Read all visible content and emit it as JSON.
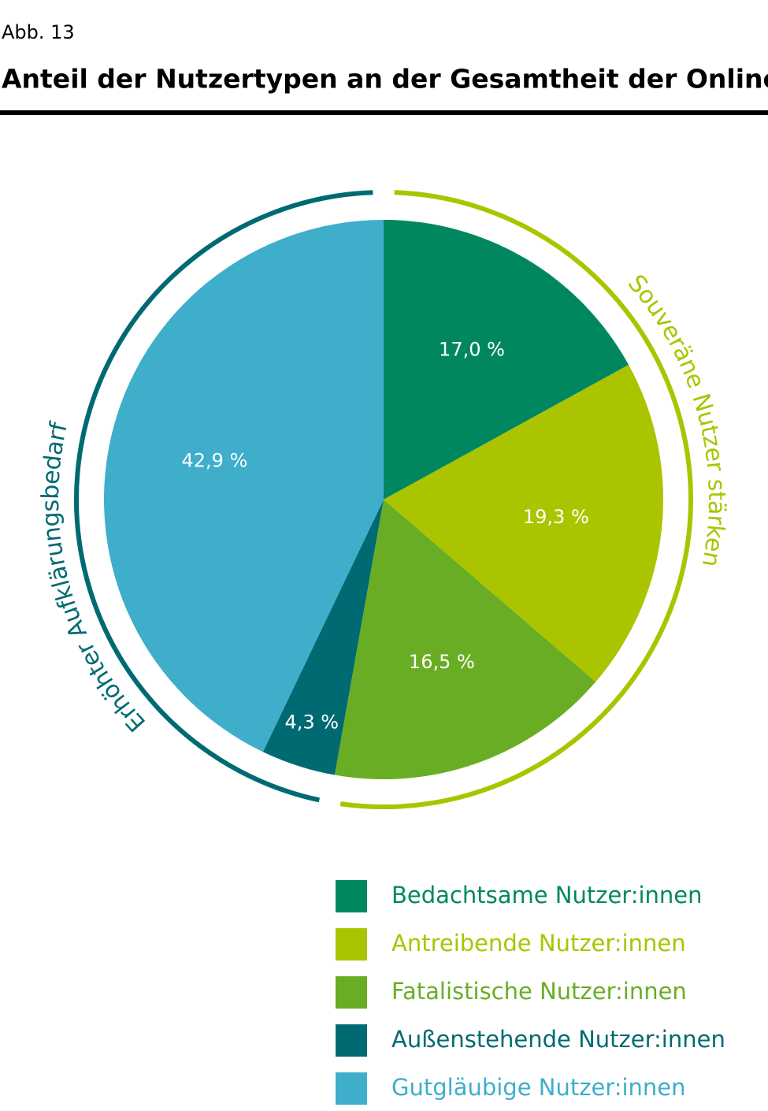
{
  "chart_data": {
    "type": "pie",
    "figure_label": "Abb. 13",
    "title": "Anteil der Nutzertypen an der Gesamtheit der Onliner",
    "categories": [
      "Bedachtsame Nutzer:innen",
      "Antreibende Nutzer:innen",
      "Fatalistische Nutzer:innen",
      "Außenstehende Nutzer:innen",
      "Gutgläubige Nutzer:innen"
    ],
    "values": [
      17.0,
      19.3,
      16.5,
      4.3,
      42.9
    ],
    "value_labels": [
      "17,0 %",
      "19,3 %",
      "16,5 %",
      "4,3 %",
      "42,9 %"
    ],
    "colors": [
      "#00875f",
      "#abc400",
      "#69ad24",
      "#006a72",
      "#3eaecb"
    ],
    "annotations": [
      {
        "text": "Souveräne Nutzer stärken",
        "color": "#abc400"
      },
      {
        "text": "Erhöhter Aufklärungsbedarf",
        "color": "#006a72"
      }
    ],
    "legend": "bottom-right"
  }
}
